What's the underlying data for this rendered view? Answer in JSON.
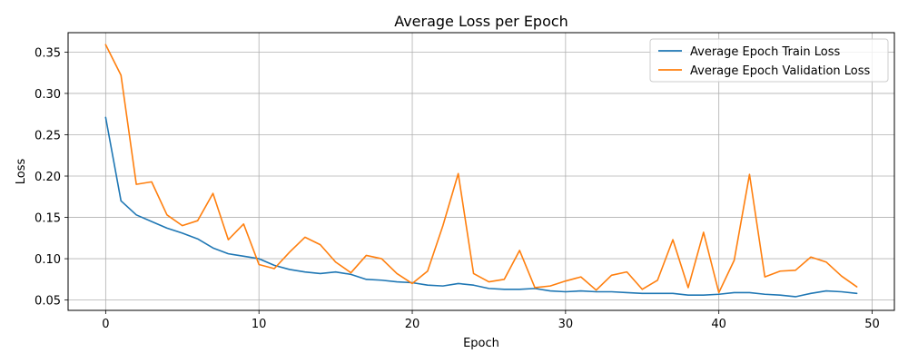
{
  "chart_data": {
    "type": "line",
    "title": "Average Loss per Epoch",
    "xlabel": "Epoch",
    "ylabel": "Loss",
    "xlim": [
      -2.45,
      51.45
    ],
    "ylim": [
      0.0375,
      0.3735
    ],
    "xticks": [
      0,
      10,
      20,
      30,
      40,
      50
    ],
    "yticks": [
      0.05,
      0.1,
      0.15,
      0.2,
      0.25,
      0.3,
      0.35
    ],
    "grid": true,
    "legend_position": "top-right",
    "x": [
      0,
      1,
      2,
      3,
      4,
      5,
      6,
      7,
      8,
      9,
      10,
      11,
      12,
      13,
      14,
      15,
      16,
      17,
      18,
      19,
      20,
      21,
      22,
      23,
      24,
      25,
      26,
      27,
      28,
      29,
      30,
      31,
      32,
      33,
      34,
      35,
      36,
      37,
      38,
      39,
      40,
      41,
      42,
      43,
      44,
      45,
      46,
      47,
      48,
      49
    ],
    "series": [
      {
        "name": "Average Epoch Train Loss",
        "color": "#1f77b4",
        "values": [
          0.271,
          0.17,
          0.153,
          0.145,
          0.137,
          0.131,
          0.124,
          0.113,
          0.106,
          0.103,
          0.1,
          0.092,
          0.087,
          0.084,
          0.082,
          0.084,
          0.081,
          0.075,
          0.074,
          0.072,
          0.071,
          0.068,
          0.067,
          0.07,
          0.068,
          0.064,
          0.063,
          0.063,
          0.064,
          0.061,
          0.06,
          0.061,
          0.06,
          0.06,
          0.059,
          0.058,
          0.058,
          0.058,
          0.056,
          0.056,
          0.057,
          0.059,
          0.059,
          0.057,
          0.056,
          0.054,
          0.058,
          0.061,
          0.06,
          0.058
        ]
      },
      {
        "name": "Average Epoch Validation Loss",
        "color": "#ff7f0e",
        "values": [
          0.359,
          0.322,
          0.19,
          0.193,
          0.153,
          0.14,
          0.146,
          0.179,
          0.123,
          0.142,
          0.093,
          0.088,
          0.108,
          0.126,
          0.117,
          0.096,
          0.083,
          0.104,
          0.1,
          0.082,
          0.07,
          0.085,
          0.14,
          0.203,
          0.082,
          0.072,
          0.075,
          0.11,
          0.065,
          0.067,
          0.073,
          0.078,
          0.062,
          0.08,
          0.084,
          0.063,
          0.074,
          0.123,
          0.065,
          0.132,
          0.059,
          0.098,
          0.202,
          0.078,
          0.085,
          0.086,
          0.102,
          0.096,
          0.079,
          0.066
        ]
      }
    ]
  }
}
